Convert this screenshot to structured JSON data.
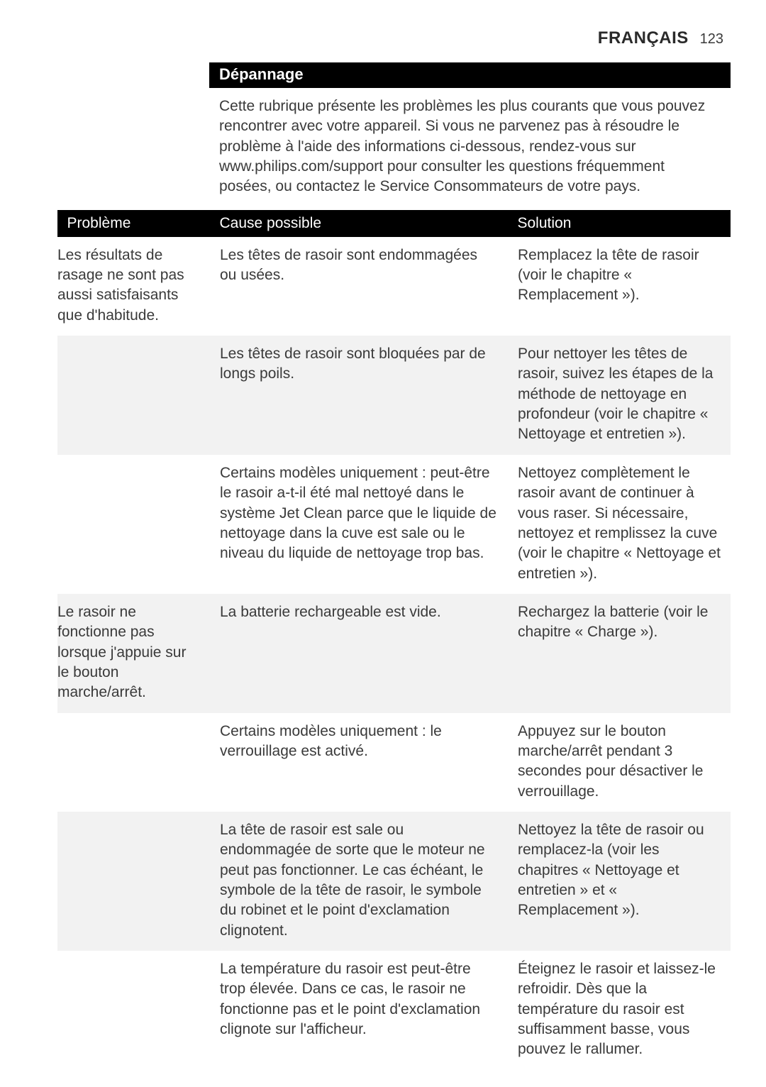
{
  "header": {
    "language": "FRANÇAIS",
    "page_number": "123"
  },
  "section": {
    "title": "Dépannage",
    "intro": "Cette rubrique présente les problèmes les plus courants que vous pouvez rencontrer avec votre appareil. Si vous ne parvenez pas à résoudre le problème à l'aide des informations ci-dessous, rendez-vous sur www.philips.com/support pour consulter les questions fréquemment posées, ou contactez le Service Consommateurs de votre pays."
  },
  "table": {
    "headers": {
      "problem": "Problème",
      "cause": "Cause possible",
      "solution": "Solution"
    },
    "rows": [
      {
        "problem": "Les résultats de rasage ne sont pas aussi satisfaisants que d'habitude.",
        "cause": "Les têtes de rasoir sont endommagées ou usées.",
        "solution": "Remplacez la tête de rasoir (voir le chapitre « Remplacement »)."
      },
      {
        "problem": "",
        "cause": "Les têtes de rasoir sont bloquées par de longs poils.",
        "solution": "Pour nettoyer les têtes de rasoir, suivez les étapes de la méthode de nettoyage en profondeur (voir le chapitre « Nettoyage et entretien »)."
      },
      {
        "problem": "",
        "cause": "Certains modèles uniquement : peut-être le rasoir a-t-il été mal nettoyé dans le système Jet Clean parce que le liquide de nettoyage dans la cuve est sale ou le niveau du liquide de nettoyage trop bas.",
        "solution": "Nettoyez complètement le rasoir avant de continuer à vous raser. Si nécessaire, nettoyez et remplissez la cuve (voir le chapitre « Nettoyage et entretien »)."
      },
      {
        "problem": "Le rasoir ne fonctionne pas lorsque j'appuie sur le bouton marche/arrêt.",
        "cause": "La batterie rechargeable est vide.",
        "solution": "Rechargez la batterie (voir le chapitre « Charge »)."
      },
      {
        "problem": "",
        "cause": "Certains modèles uniquement : le verrouillage est activé.",
        "solution": "Appuyez sur le bouton marche/arrêt pendant 3 secondes pour désactiver le verrouillage."
      },
      {
        "problem": "",
        "cause": "La tête de rasoir est sale ou endommagée de sorte que le moteur ne peut pas fonctionner. Le cas échéant, le symbole de la tête de rasoir, le symbole du robinet et le point d'exclamation clignotent.",
        "solution": "Nettoyez la tête de rasoir ou remplacez-la (voir les chapitres « Nettoyage et entretien » et « Remplacement »)."
      },
      {
        "problem": "",
        "cause": "La température du rasoir est peut-être trop élevée. Dans ce cas, le rasoir ne fonctionne pas et le point d'exclamation clignote sur l'afficheur.",
        "solution": "Éteignez le rasoir et laissez-le refroidir. Dès que la température du rasoir est suffisamment basse, vous pouvez le rallumer."
      }
    ]
  }
}
